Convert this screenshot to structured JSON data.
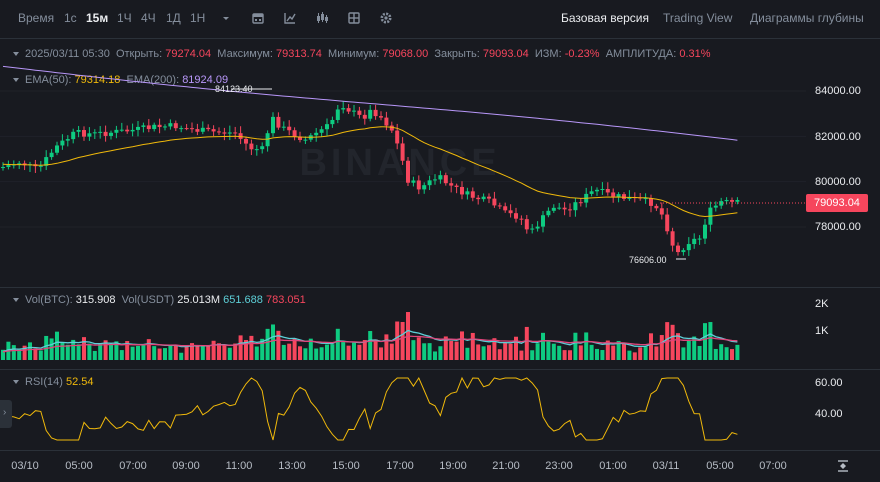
{
  "toolbar": {
    "time_label": "Время",
    "intervals": [
      "1с",
      "15м",
      "1Ч",
      "4Ч",
      "1Д",
      "1Н"
    ],
    "active_interval": "15м",
    "views": [
      "Базовая версия",
      "Trading View",
      "Диаграммы глубины"
    ],
    "active_view": "Базовая версия",
    "icons": [
      "chevron-down-icon",
      "calendar-icon",
      "indicator-icon",
      "candle-type-icon",
      "layout-icon",
      "settings-icon"
    ]
  },
  "ohlc": {
    "datetime": "2025/03/11 05:30",
    "open_label": "Открыть:",
    "open": "79274.04",
    "high_label": "Максимум:",
    "high": "79313.74",
    "low_label": "Минимум:",
    "low": "79068.00",
    "close_label": "Закрыть:",
    "close": "79093.04",
    "change_label": "ИЗМ:",
    "change": "-0.23%",
    "amplitude_label": "АМПЛИТУДА:",
    "amplitude": "0.31%"
  },
  "ema": {
    "ema50_label": "EMA(50):",
    "ema50": "79314.18",
    "ema200_label": "EMA(200):",
    "ema200": "81924.09"
  },
  "volume": {
    "btc_label": "Vol(BTC):",
    "btc": "315.908",
    "usdt_label": "Vol(USDT)",
    "usdt": "25.013M",
    "ma1": "651.688",
    "ma2": "783.051",
    "ticks": [
      "2K",
      "1K"
    ]
  },
  "rsi": {
    "label": "RSI(14)",
    "value": "52.54",
    "ticks": [
      "60.00",
      "40.00"
    ]
  },
  "price_axis": [
    "84000.00",
    "82000.00",
    "80000.00",
    "78000.00"
  ],
  "current_price": "79093.04",
  "high_marker": "84123.40",
  "low_marker": "76606.00",
  "time_axis": [
    "03/10",
    "05:00",
    "07:00",
    "09:00",
    "11:00",
    "13:00",
    "15:00",
    "17:00",
    "19:00",
    "21:00",
    "23:00",
    "01:00",
    "03/11",
    "05:00",
    "07:00"
  ],
  "watermark": "BINANCE",
  "colors": {
    "up": "#0ecb81",
    "down": "#f6465d",
    "ema50": "#f0b90b",
    "ema200": "#b897f9",
    "bg": "#181a20"
  }
}
